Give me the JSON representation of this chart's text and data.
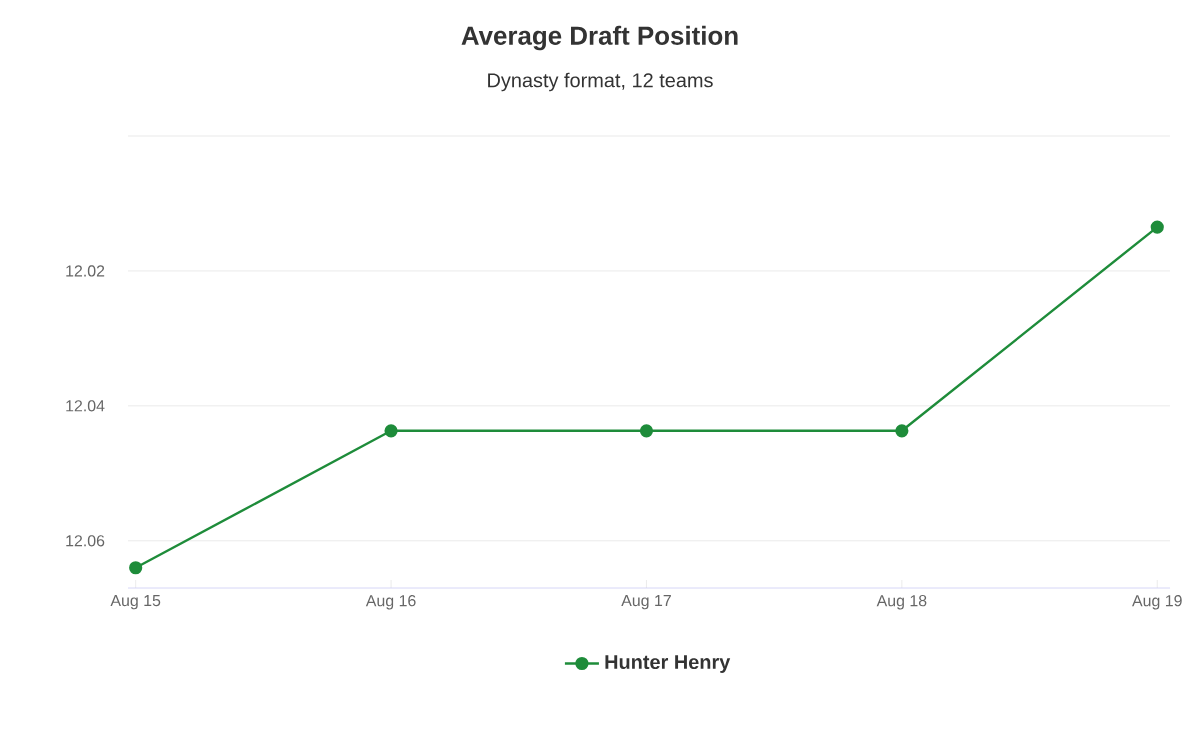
{
  "chart_data": {
    "type": "line",
    "title": "Average Draft Position",
    "subtitle": "Dynasty format, 12 teams",
    "categories": [
      "Aug 15",
      "Aug 16",
      "Aug 17",
      "Aug 18",
      "Aug 19"
    ],
    "series": [
      {
        "name": "Hunter Henry",
        "color": "#1e8c3a",
        "values": [
          12.064,
          12.0437,
          12.0437,
          12.0437,
          12.0135
        ]
      }
    ],
    "ylim": [
      12.067,
      12.0
    ],
    "yticks": [
      {
        "value": 12.0,
        "label": null
      },
      12.02,
      12.04,
      12.06
    ],
    "grid": "y",
    "legend": "bottom",
    "marker": "circle",
    "line_style": "solid"
  }
}
